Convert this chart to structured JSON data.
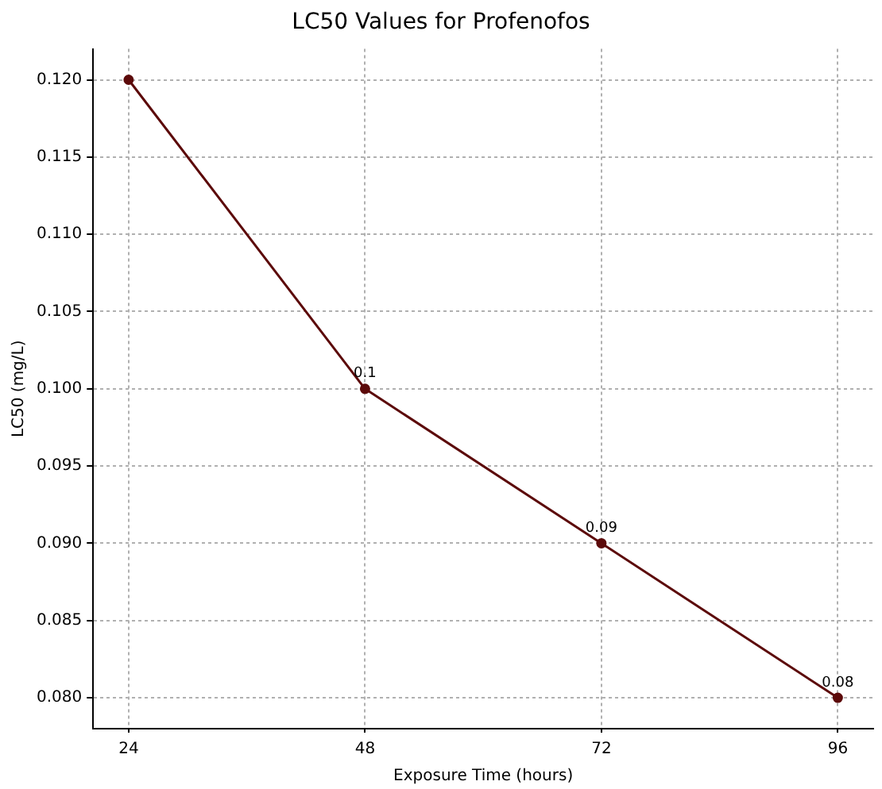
{
  "chart_data": {
    "type": "line",
    "title": "LC50 Values for Profenofos",
    "xlabel": "Exposure Time (hours)",
    "ylabel": "LC50 (mg/L)",
    "x": [
      24,
      48,
      72,
      96
    ],
    "series": [
      {
        "color": "#5c0a0a",
        "values": [
          0.12,
          0.1,
          0.09,
          0.08
        ],
        "value_labels": [
          null,
          "0.1",
          "0.09",
          "0.08"
        ]
      }
    ],
    "xlim": [
      20.4,
      99.6
    ],
    "xticks": [
      24,
      48,
      72,
      96
    ],
    "ylim": [
      0.078,
      0.122
    ],
    "yticks": [
      {
        "value": 0.08,
        "label": "0.080"
      },
      {
        "value": 0.085,
        "label": "0.085"
      },
      {
        "value": 0.09,
        "label": "0.090"
      },
      {
        "value": 0.095,
        "label": "0.095"
      },
      {
        "value": 0.1,
        "label": "0.100"
      },
      {
        "value": 0.105,
        "label": "0.105"
      },
      {
        "value": 0.11,
        "label": "0.110"
      },
      {
        "value": 0.115,
        "label": "0.115"
      },
      {
        "value": 0.12,
        "label": "0.120"
      }
    ],
    "grid": true,
    "marker": "circle",
    "line_style": "solid",
    "legend": false
  }
}
